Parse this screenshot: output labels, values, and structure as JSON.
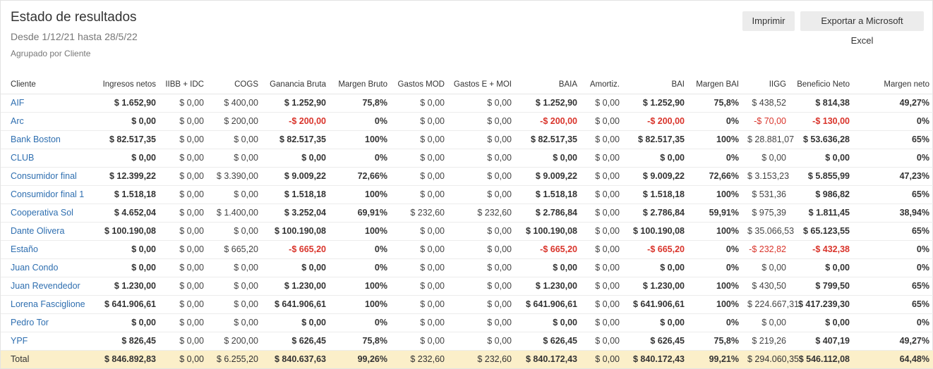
{
  "header": {
    "title": "Estado de resultados",
    "date_range": "Desde 1/12/21 hasta 28/5/22",
    "grouping": "Agrupado por Cliente"
  },
  "actions": {
    "print_label": "Imprimir",
    "export_label": "Exportar a Microsoft Excel"
  },
  "table": {
    "columns": [
      "Cliente",
      "Ingresos netos",
      "IIBB + IDC",
      "COGS",
      "Ganancia Bruta",
      "Margen Bruto",
      "Gastos MOD",
      "Gastos E + MOI",
      "BAIA",
      "Amortiz.",
      "BAI",
      "Margen BAI",
      "IIGG",
      "Beneficio Neto",
      "Margen neto"
    ],
    "rows": [
      [
        "AIF",
        "$ 1.652,90",
        "$ 0,00",
        "$ 400,00",
        "$ 1.252,90",
        "75,8%",
        "$ 0,00",
        "$ 0,00",
        "$ 1.252,90",
        "$ 0,00",
        "$ 1.252,90",
        "75,8%",
        "$ 438,52",
        "$ 814,38",
        "49,27%"
      ],
      [
        "Arc",
        "$ 0,00",
        "$ 0,00",
        "$ 200,00",
        "-$ 200,00",
        "0%",
        "$ 0,00",
        "$ 0,00",
        "-$ 200,00",
        "$ 0,00",
        "-$ 200,00",
        "0%",
        "-$ 70,00",
        "-$ 130,00",
        "0%"
      ],
      [
        "Bank Boston",
        "$ 82.517,35",
        "$ 0,00",
        "$ 0,00",
        "$ 82.517,35",
        "100%",
        "$ 0,00",
        "$ 0,00",
        "$ 82.517,35",
        "$ 0,00",
        "$ 82.517,35",
        "100%",
        "$ 28.881,07",
        "$ 53.636,28",
        "65%"
      ],
      [
        "CLUB",
        "$ 0,00",
        "$ 0,00",
        "$ 0,00",
        "$ 0,00",
        "0%",
        "$ 0,00",
        "$ 0,00",
        "$ 0,00",
        "$ 0,00",
        "$ 0,00",
        "0%",
        "$ 0,00",
        "$ 0,00",
        "0%"
      ],
      [
        "Consumidor final",
        "$ 12.399,22",
        "$ 0,00",
        "$ 3.390,00",
        "$ 9.009,22",
        "72,66%",
        "$ 0,00",
        "$ 0,00",
        "$ 9.009,22",
        "$ 0,00",
        "$ 9.009,22",
        "72,66%",
        "$ 3.153,23",
        "$ 5.855,99",
        "47,23%"
      ],
      [
        "Consumidor final 1",
        "$ 1.518,18",
        "$ 0,00",
        "$ 0,00",
        "$ 1.518,18",
        "100%",
        "$ 0,00",
        "$ 0,00",
        "$ 1.518,18",
        "$ 0,00",
        "$ 1.518,18",
        "100%",
        "$ 531,36",
        "$ 986,82",
        "65%"
      ],
      [
        "Cooperativa Sol",
        "$ 4.652,04",
        "$ 0,00",
        "$ 1.400,00",
        "$ 3.252,04",
        "69,91%",
        "$ 232,60",
        "$ 232,60",
        "$ 2.786,84",
        "$ 0,00",
        "$ 2.786,84",
        "59,91%",
        "$ 975,39",
        "$ 1.811,45",
        "38,94%"
      ],
      [
        "Dante Olivera",
        "$ 100.190,08",
        "$ 0,00",
        "$ 0,00",
        "$ 100.190,08",
        "100%",
        "$ 0,00",
        "$ 0,00",
        "$ 100.190,08",
        "$ 0,00",
        "$ 100.190,08",
        "100%",
        "$ 35.066,53",
        "$ 65.123,55",
        "65%"
      ],
      [
        "Estaño",
        "$ 0,00",
        "$ 0,00",
        "$ 665,20",
        "-$ 665,20",
        "0%",
        "$ 0,00",
        "$ 0,00",
        "-$ 665,20",
        "$ 0,00",
        "-$ 665,20",
        "0%",
        "-$ 232,82",
        "-$ 432,38",
        "0%"
      ],
      [
        "Juan Condo",
        "$ 0,00",
        "$ 0,00",
        "$ 0,00",
        "$ 0,00",
        "0%",
        "$ 0,00",
        "$ 0,00",
        "$ 0,00",
        "$ 0,00",
        "$ 0,00",
        "0%",
        "$ 0,00",
        "$ 0,00",
        "0%"
      ],
      [
        "Juan Revendedor",
        "$ 1.230,00",
        "$ 0,00",
        "$ 0,00",
        "$ 1.230,00",
        "100%",
        "$ 0,00",
        "$ 0,00",
        "$ 1.230,00",
        "$ 0,00",
        "$ 1.230,00",
        "100%",
        "$ 430,50",
        "$ 799,50",
        "65%"
      ],
      [
        "Lorena Fasciglione",
        "$ 641.906,61",
        "$ 0,00",
        "$ 0,00",
        "$ 641.906,61",
        "100%",
        "$ 0,00",
        "$ 0,00",
        "$ 641.906,61",
        "$ 0,00",
        "$ 641.906,61",
        "100%",
        "$ 224.667,31",
        "$ 417.239,30",
        "65%"
      ],
      [
        "Pedro Tor",
        "$ 0,00",
        "$ 0,00",
        "$ 0,00",
        "$ 0,00",
        "0%",
        "$ 0,00",
        "$ 0,00",
        "$ 0,00",
        "$ 0,00",
        "$ 0,00",
        "0%",
        "$ 0,00",
        "$ 0,00",
        "0%"
      ],
      [
        "YPF",
        "$ 826,45",
        "$ 0,00",
        "$ 200,00",
        "$ 626,45",
        "75,8%",
        "$ 0,00",
        "$ 0,00",
        "$ 626,45",
        "$ 0,00",
        "$ 626,45",
        "75,8%",
        "$ 219,26",
        "$ 407,19",
        "49,27%"
      ]
    ],
    "total": [
      "Total",
      "$ 846.892,83",
      "$ 0,00",
      "$ 6.255,20",
      "$ 840.637,63",
      "99,26%",
      "$ 232,60",
      "$ 232,60",
      "$ 840.172,43",
      "$ 0,00",
      "$ 840.172,43",
      "99,21%",
      "$ 294.060,35",
      "$ 546.112,08",
      "64,48%"
    ]
  },
  "colors": {
    "link": "#2f6fb0",
    "negative": "#d9342b",
    "total_row_bg": "#fbefc9",
    "button_bg": "#ececec"
  }
}
